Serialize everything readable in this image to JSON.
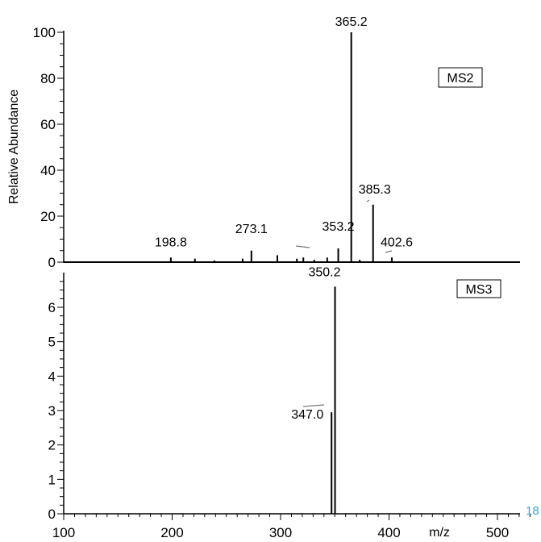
{
  "chart_data": [
    {
      "type": "bar",
      "panel_label": "MS2",
      "ylabel": "Relative Abundance",
      "ylim": [
        0,
        100
      ],
      "yticks": [
        0,
        20,
        40,
        60,
        80,
        100
      ],
      "xlim": [
        100,
        530
      ],
      "peaks": [
        {
          "mz": 198.8,
          "value": 2,
          "label": "198.8"
        },
        {
          "mz": 221.0,
          "value": 1.5,
          "label": ""
        },
        {
          "mz": 239.0,
          "value": 0.7,
          "label": ""
        },
        {
          "mz": 265.0,
          "value": 1.5,
          "label": ""
        },
        {
          "mz": 273.1,
          "value": 5,
          "label": "273.1"
        },
        {
          "mz": 297.0,
          "value": 3,
          "label": ""
        },
        {
          "mz": 315.0,
          "value": 1.5,
          "label": ""
        },
        {
          "mz": 321.0,
          "value": 2,
          "label": ""
        },
        {
          "mz": 331.0,
          "value": 1,
          "label": ""
        },
        {
          "mz": 343.0,
          "value": 2,
          "label": ""
        },
        {
          "mz": 353.2,
          "value": 6,
          "label": "353.2"
        },
        {
          "mz": 365.2,
          "value": 100,
          "label": "365.2"
        },
        {
          "mz": 373.0,
          "value": 1,
          "label": ""
        },
        {
          "mz": 385.3,
          "value": 25,
          "label": "385.3"
        },
        {
          "mz": 402.6,
          "value": 2,
          "label": "402.6"
        }
      ]
    },
    {
      "type": "bar",
      "panel_label": "MS3",
      "ylim": [
        0,
        6.8
      ],
      "yticks": [
        0,
        1,
        2,
        3,
        4,
        5,
        6
      ],
      "xlim": [
        100,
        530
      ],
      "xticks": [
        100,
        200,
        300,
        400,
        500
      ],
      "xlabel": "m/z",
      "peaks": [
        {
          "mz": 347.0,
          "value": 2.95,
          "label": "347.0"
        },
        {
          "mz": 350.2,
          "value": 6.6,
          "label": "350.2"
        }
      ]
    }
  ],
  "corner_text": "18",
  "colors": {
    "axis": "#000000",
    "corner_text": "#3ba3d9"
  }
}
